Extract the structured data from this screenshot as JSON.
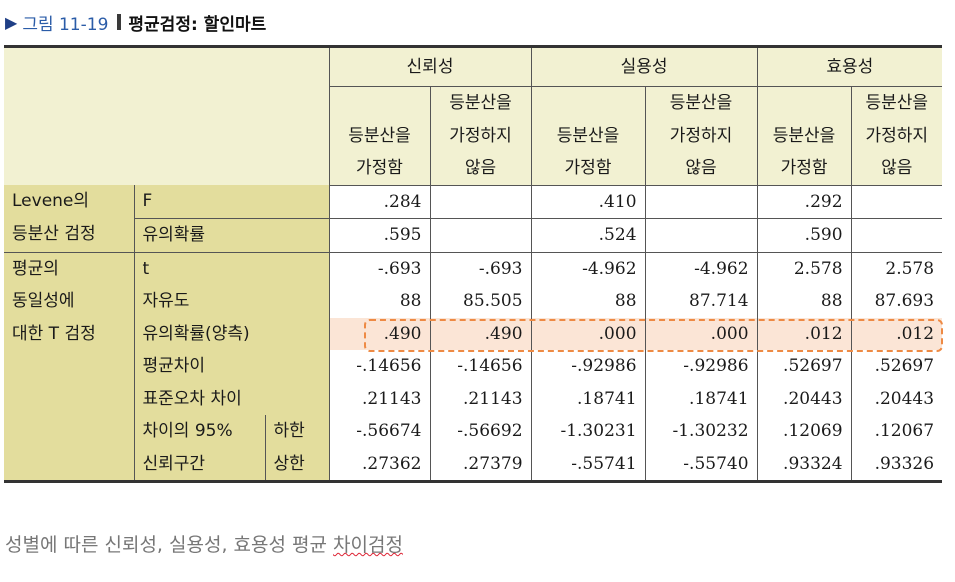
{
  "figure": {
    "arrow": "▶",
    "label": "그림 11-19",
    "title": "평균검정: 할인마트"
  },
  "table": {
    "groups": [
      "신뢰성",
      "실용성",
      "효용성"
    ],
    "subheaders": {
      "equal": [
        "등분산을",
        "가정함"
      ],
      "unequal": [
        "등분산을",
        "가정하지",
        "않음"
      ]
    },
    "levene": {
      "label": [
        "Levene의",
        "등분산 검정"
      ],
      "rows": [
        {
          "stat": "F",
          "values": [
            ".284",
            "",
            ".410",
            "",
            ".292",
            ""
          ]
        },
        {
          "stat": "유의확률",
          "values": [
            ".595",
            "",
            ".524",
            "",
            ".590",
            ""
          ]
        }
      ]
    },
    "ttest": {
      "label": [
        "평균의",
        "동일성에",
        "대한 T 검정"
      ],
      "rows": [
        {
          "stat": "t",
          "values": [
            "-.693",
            "-.693",
            "-4.962",
            "-4.962",
            "2.578",
            "2.578"
          ]
        },
        {
          "stat": "자유도",
          "values": [
            "88",
            "85.505",
            "88",
            "87.714",
            "88",
            "87.693"
          ]
        },
        {
          "stat": "유의확률(양측)",
          "values": [
            ".490",
            ".490",
            ".000",
            ".000",
            ".012",
            ".012"
          ]
        },
        {
          "stat": "평균차이",
          "values": [
            "-.14656",
            "-.14656",
            "-.92986",
            "-.92986",
            ".52697",
            ".52697"
          ]
        },
        {
          "stat": "표준오차 차이",
          "values": [
            ".21143",
            ".21143",
            ".18741",
            ".18741",
            ".20443",
            ".20443"
          ]
        }
      ],
      "ci": {
        "label": [
          "차이의 95%",
          "신뢰구간"
        ],
        "rows": [
          {
            "bound": "하한",
            "values": [
              "-.56674",
              "-.56692",
              "-1.30231",
              "-1.30232",
              ".12069",
              ".12067"
            ]
          },
          {
            "bound": "상한",
            "values": [
              ".27362",
              ".27379",
              "-.55741",
              "-.55740",
              ".93324",
              ".93326"
            ]
          }
        ]
      }
    }
  },
  "caption": {
    "prefix": "성별에 따른 신뢰성, 실용성, 효용성 평균 ",
    "underlined": "차이검정"
  },
  "colors": {
    "header_bg": "#f2f1d2",
    "label_bg": "#e3dd9d",
    "highlight_fill": "#fbe5d6",
    "highlight_border": "#ee8a44",
    "figure_label": "#2b5ca8"
  }
}
